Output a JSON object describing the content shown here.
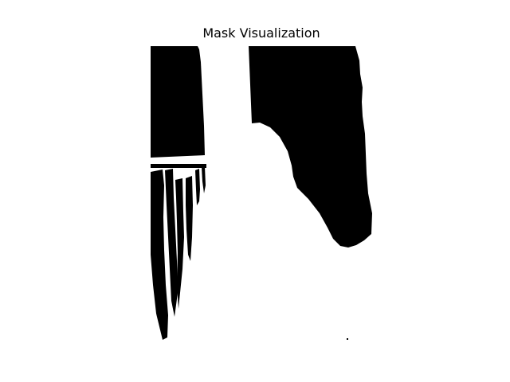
{
  "figure": {
    "title": "Mask Visualization"
  },
  "colors": {
    "background": "#ffffff",
    "mask_foreground": "#ffffff",
    "mask_background": "#000000"
  }
}
